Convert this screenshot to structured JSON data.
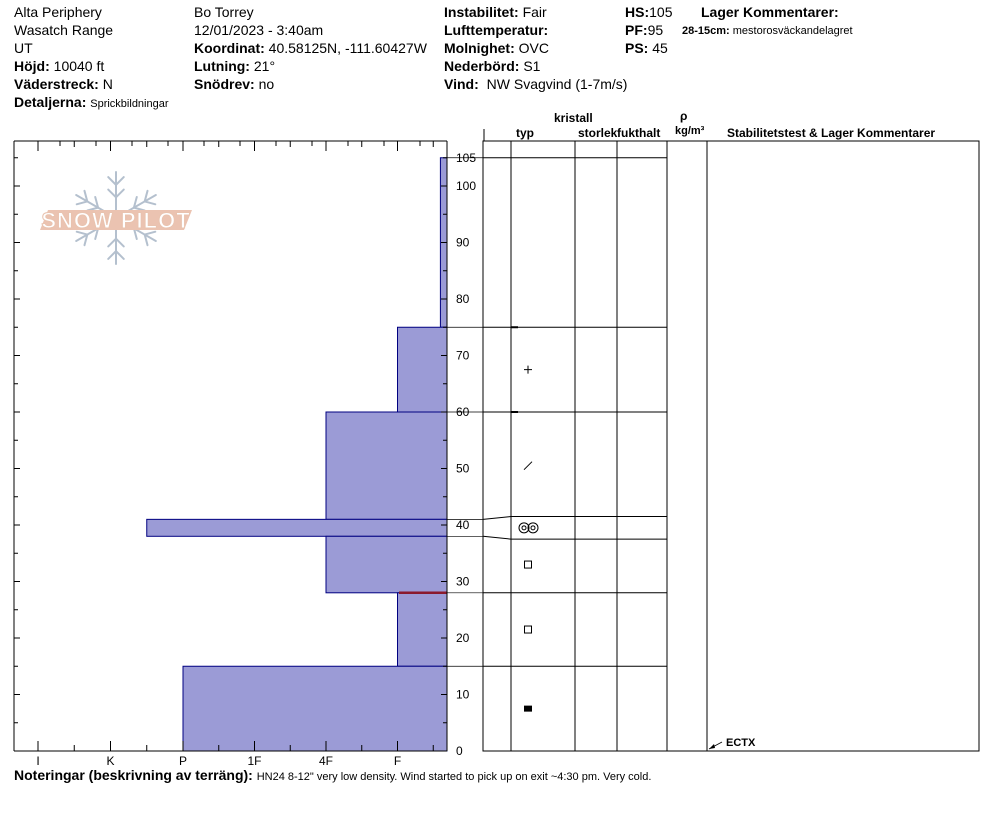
{
  "header": {
    "location": "Alta Periphery",
    "range": "Wasatch Range",
    "state": "UT",
    "elevation": {
      "label": "Höjd:",
      "value": "10040 ft"
    },
    "aspect": {
      "label": "Väderstreck:",
      "value": "N"
    },
    "details": {
      "label": "Detaljerna:",
      "value": "Sprickbildningar"
    },
    "observer": "Bo Torrey",
    "datetime": "12/01/2023 - 3:40am",
    "coords": {
      "label": "Koordinat:",
      "value": "40.58125N, -111.60427W"
    },
    "slope": {
      "label": "Lutning:",
      "value": "21°"
    },
    "drift": {
      "label": "Snödrev:",
      "value": "no"
    },
    "stability": {
      "label": "Instabilitet:",
      "value": "Fair"
    },
    "airtemp": {
      "label": "Lufttemperatur:",
      "value": ""
    },
    "sky": {
      "label": "Molnighet:",
      "value": "OVC"
    },
    "precip": {
      "label": "Nederbörd:",
      "value": "S1"
    },
    "wind": {
      "label": "Vind:",
      "value": "NW Svagvind (1-7m/s)"
    },
    "hs": {
      "label": "HS:",
      "value": "105"
    },
    "pf": {
      "label": "PF:",
      "value": "95"
    },
    "ps": {
      "label": "PS:",
      "value": "45"
    },
    "layer_comments": {
      "label": "Lager Kommentarer:",
      "range": "28-15cm:",
      "text": "mestorosväckandelagret"
    }
  },
  "columns": {
    "crystal": "kristall",
    "type": "typ",
    "size": "storlek",
    "moisture": "fukthalt",
    "rho": "ρ",
    "density_unit": "kg/m³",
    "stability": "Stabilitetstest & Lager Kommentarer"
  },
  "test_result": "ECTX",
  "notes": {
    "label": "Noteringar (beskrivning av terräng):",
    "text": "HN24 8-12\" very low density. Wind started to pick up on exit ~4:30 pm. Very cold."
  },
  "logo_text": "SNOW PILOT",
  "colors": {
    "fill": "#9b9bd6",
    "stroke": "#000080",
    "critical": "#8b1a2e"
  },
  "chart_data": {
    "type": "bar",
    "orientation": "horizontal",
    "hardness_scale": [
      "I",
      "K",
      "P",
      "1F",
      "4F",
      "F"
    ],
    "height_ticks": [
      0,
      10,
      20,
      30,
      40,
      50,
      60,
      70,
      80,
      90,
      100,
      105
    ],
    "ylim": [
      0,
      105
    ],
    "layers": [
      {
        "top": 105,
        "bottom": 75,
        "hardness": "F-",
        "hardness_value": 6.6,
        "grain": "",
        "grain_icon": ""
      },
      {
        "top": 75,
        "bottom": 60,
        "hardness": "F",
        "hardness_value": 6.0,
        "grain": "PP",
        "grain_icon": "plus"
      },
      {
        "top": 60,
        "bottom": 41,
        "hardness": "4F",
        "hardness_value": 5.0,
        "grain": "DF",
        "grain_icon": "slash"
      },
      {
        "top": 41,
        "bottom": 38,
        "hardness": "K-",
        "hardness_value": 2.5,
        "grain": "SH",
        "grain_icon": "double-circle"
      },
      {
        "top": 38,
        "bottom": 28,
        "hardness": "4F",
        "hardness_value": 5.0,
        "grain": "FC",
        "grain_icon": "square"
      },
      {
        "top": 28,
        "bottom": 15,
        "hardness": "F",
        "hardness_value": 6.0,
        "grain": "FC",
        "grain_icon": "square"
      },
      {
        "top": 15,
        "bottom": 0,
        "hardness": "P",
        "hardness_value": 3.0,
        "grain": "MF",
        "grain_icon": "filled-square"
      }
    ],
    "critical_interface": 28,
    "test_height": 0
  }
}
